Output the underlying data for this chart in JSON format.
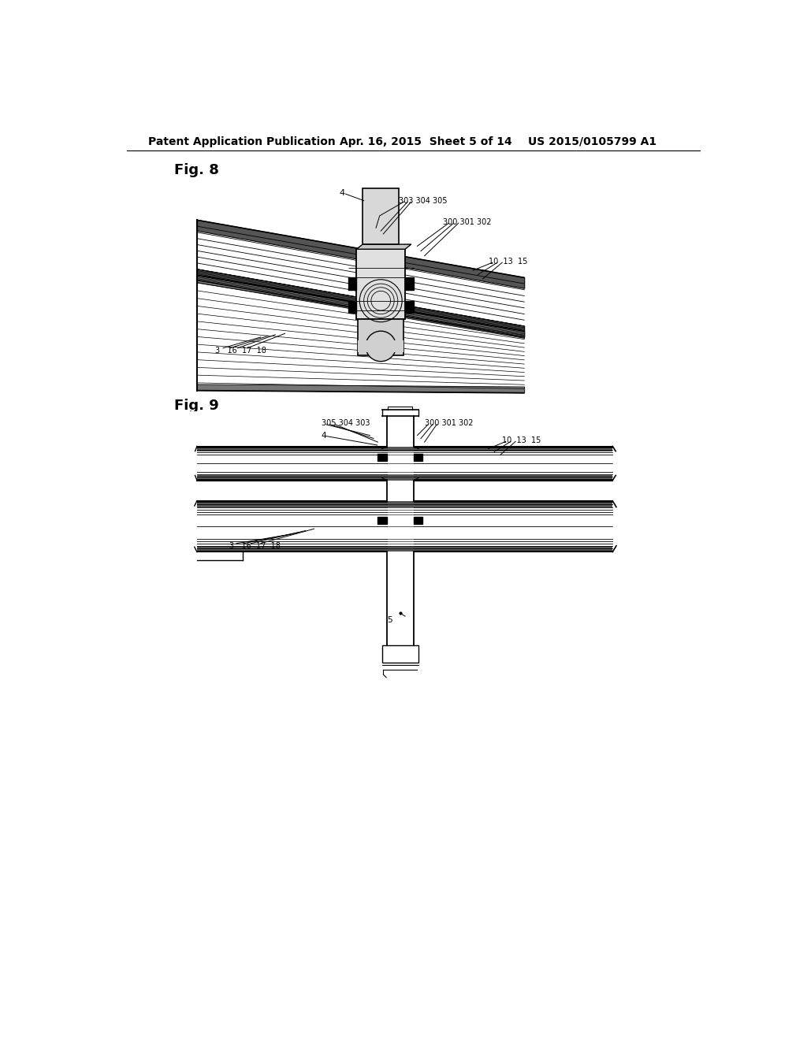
{
  "bg_color": "#ffffff",
  "text_color": "#000000",
  "line_color": "#000000",
  "header_left": "Patent Application Publication",
  "header_mid": "Apr. 16, 2015  Sheet 5 of 14",
  "header_right": "US 2015/0105799 A1",
  "fig8_label": "Fig. 8",
  "fig9_label": "Fig. 9",
  "header_fontsize": 10,
  "fig_label_fontsize": 13
}
